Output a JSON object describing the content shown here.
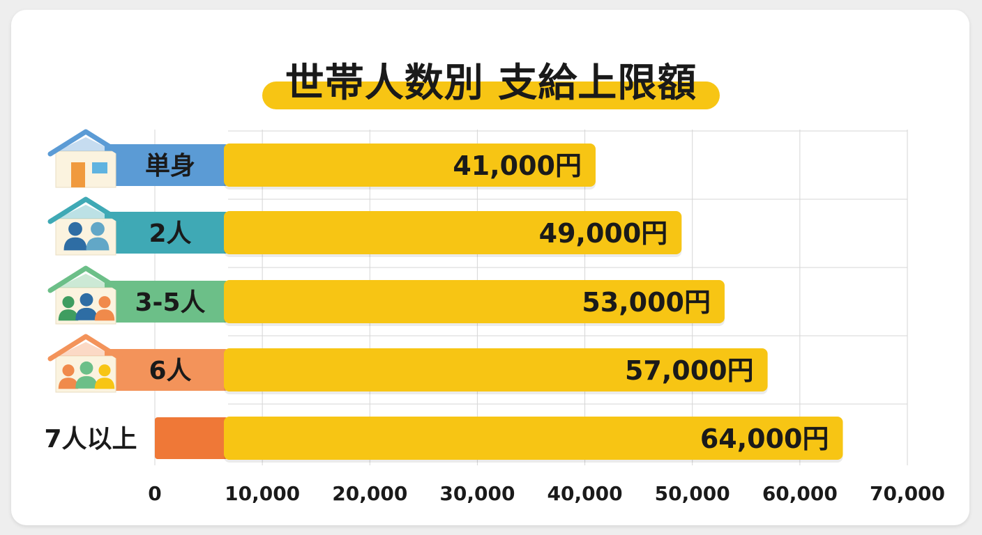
{
  "chart_data": {
    "type": "bar",
    "orientation": "horizontal",
    "title": "世帯人数別 支給上限額",
    "categories": [
      "単身",
      "2人",
      "3-5人",
      "6人",
      "7人以上"
    ],
    "values": [
      41000,
      49000,
      53000,
      57000,
      64000
    ],
    "data_labels": [
      "41,000円",
      "49,000円",
      "53,000円",
      "57,000円",
      "64,000円"
    ],
    "category_colors": [
      "#5b9bd5",
      "#3fa9b5",
      "#6cbf88",
      "#f3935a",
      "#ef7837"
    ],
    "category_icons": [
      "house-single-icon",
      "house-two-people-icon",
      "house-family-icon",
      "house-large-family-icon",
      ""
    ],
    "bar_color": "#f7c514",
    "xlim": [
      0,
      70000
    ],
    "x_ticks": [
      0,
      10000,
      20000,
      30000,
      40000,
      50000,
      60000,
      70000
    ],
    "x_tick_labels": [
      "0",
      "10,000",
      "20,000",
      "30,000",
      "40,000",
      "50,000",
      "60,000",
      "70,000"
    ],
    "grid": true,
    "xlabel": "",
    "ylabel": ""
  }
}
